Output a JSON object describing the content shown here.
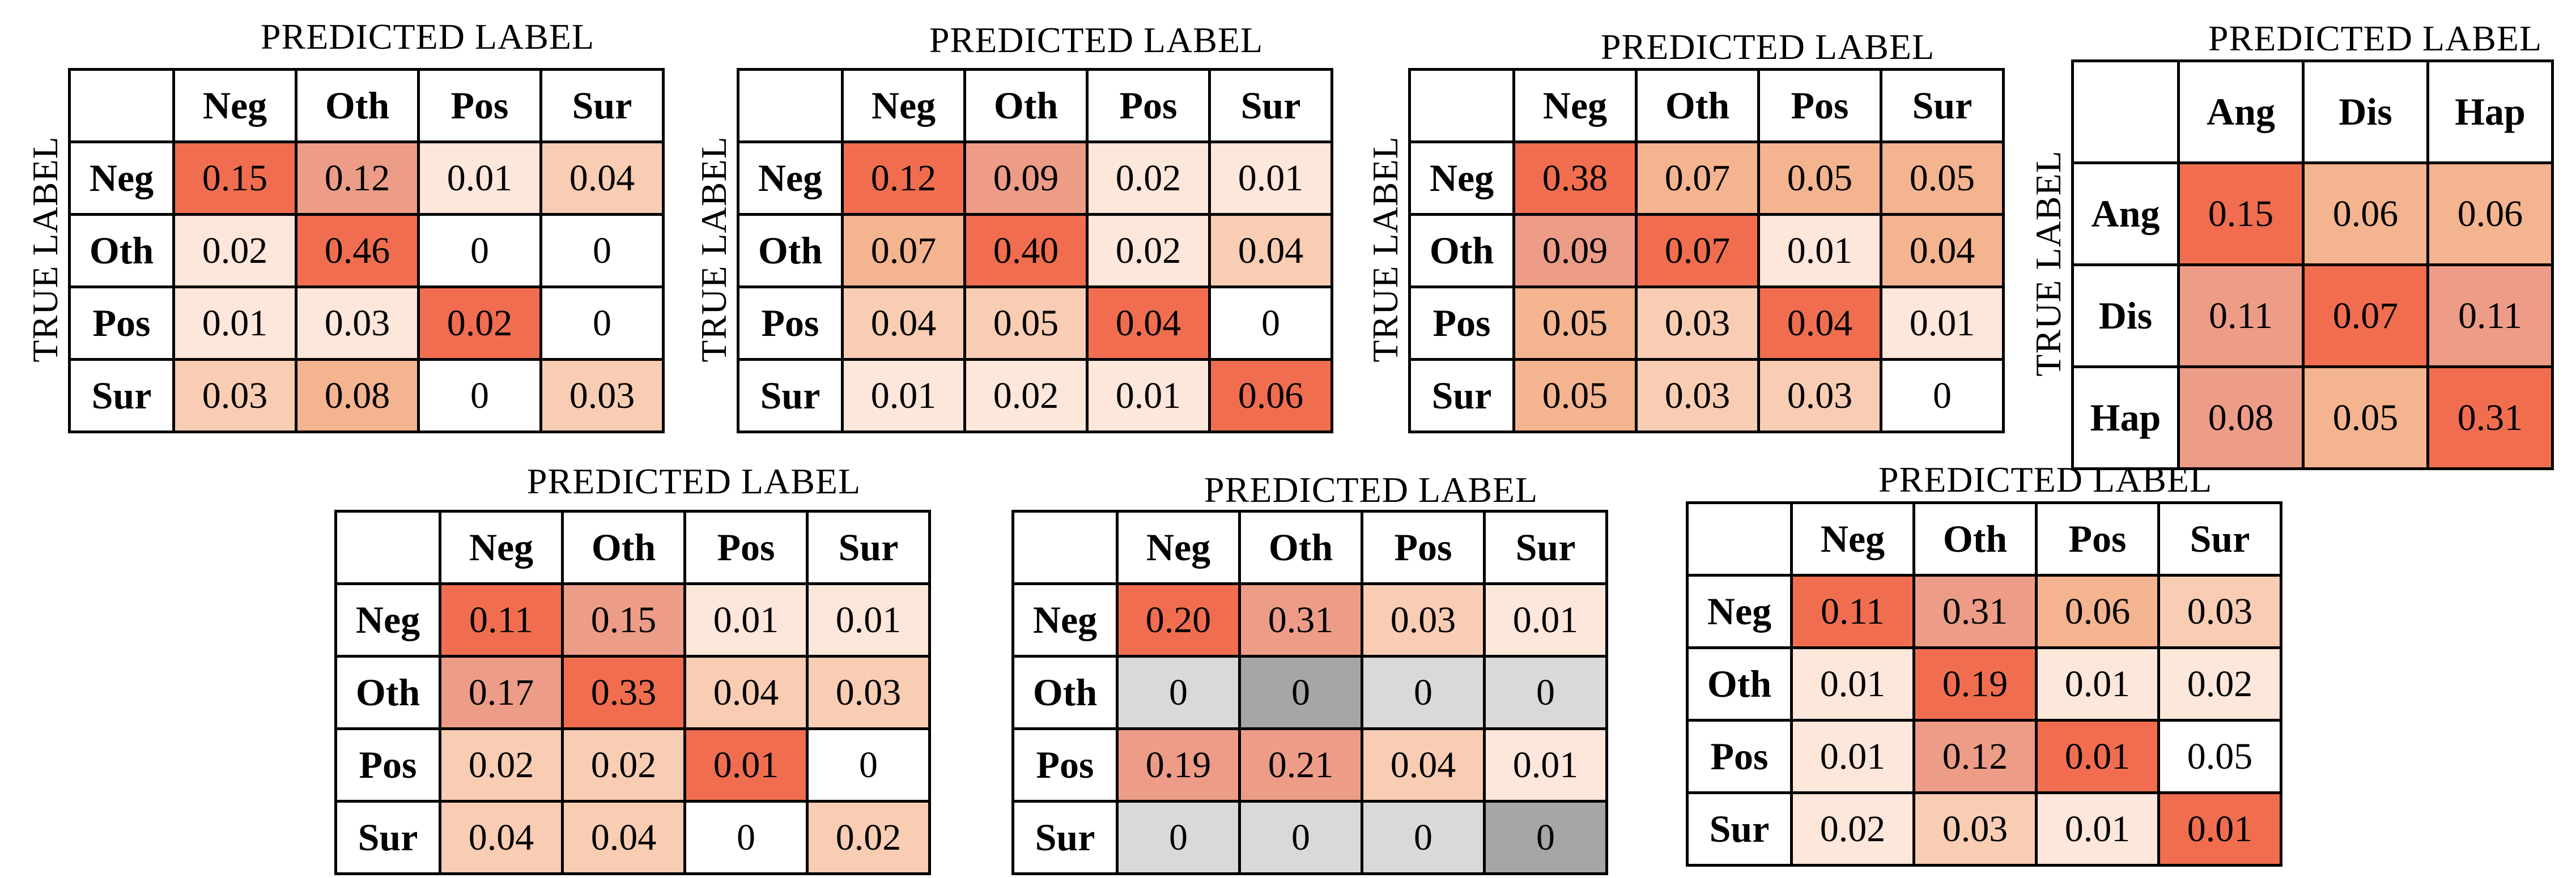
{
  "axis_labels": {
    "predicted": "PREDICTED LABEL",
    "true": "TRUE LABEL"
  },
  "colors": {
    "scale": [
      "#ffffff",
      "#fde6da",
      "#f9cdb3",
      "#f4b48f",
      "#ed9c88",
      "#f06e4f"
    ],
    "gray_light": "#d9d9d9",
    "gray_dark": "#a6a6a6"
  },
  "chart_data": [
    {
      "type": "heatmap",
      "x_label": "PREDICTED LABEL",
      "y_label": "TRUE LABEL",
      "categories": [
        "Neg",
        "Oth",
        "Pos",
        "Sur"
      ],
      "values": [
        [
          "0.15",
          "0.12",
          "0.01",
          "0.04"
        ],
        [
          "0.02",
          "0.46",
          "0",
          "0"
        ],
        [
          "0.01",
          "0.03",
          "0.02",
          "0"
        ],
        [
          "0.03",
          "0.08",
          "0",
          "0.03"
        ]
      ],
      "shades": [
        [
          5,
          4,
          1,
          2
        ],
        [
          1,
          5,
          0,
          0
        ],
        [
          1,
          1,
          5,
          0
        ],
        [
          2,
          3,
          0,
          2
        ]
      ]
    },
    {
      "type": "heatmap",
      "x_label": "PREDICTED LABEL",
      "y_label": "TRUE LABEL",
      "categories": [
        "Neg",
        "Oth",
        "Pos",
        "Sur"
      ],
      "values": [
        [
          "0.12",
          "0.09",
          "0.02",
          "0.01"
        ],
        [
          "0.07",
          "0.40",
          "0.02",
          "0.04"
        ],
        [
          "0.04",
          "0.05",
          "0.04",
          "0"
        ],
        [
          "0.01",
          "0.02",
          "0.01",
          "0.06"
        ]
      ],
      "shades": [
        [
          5,
          4,
          1,
          1
        ],
        [
          3,
          5,
          1,
          2
        ],
        [
          2,
          2,
          5,
          0
        ],
        [
          1,
          1,
          1,
          5
        ]
      ]
    },
    {
      "type": "heatmap",
      "x_label": "PREDICTED LABEL",
      "y_label": "TRUE LABEL",
      "categories": [
        "Neg",
        "Oth",
        "Pos",
        "Sur"
      ],
      "values": [
        [
          "0.38",
          "0.07",
          "0.05",
          "0.05"
        ],
        [
          "0.09",
          "0.07",
          "0.01",
          "0.04"
        ],
        [
          "0.05",
          "0.03",
          "0.04",
          "0.01"
        ],
        [
          "0.05",
          "0.03",
          "0.03",
          "0"
        ]
      ],
      "shades": [
        [
          5,
          3,
          3,
          3
        ],
        [
          4,
          5,
          1,
          3
        ],
        [
          3,
          2,
          5,
          1
        ],
        [
          3,
          2,
          2,
          0
        ]
      ]
    },
    {
      "type": "heatmap",
      "x_label": "PREDICTED LABEL",
      "y_label": "TRUE LABEL",
      "categories": [
        "Ang",
        "Dis",
        "Hap"
      ],
      "values": [
        [
          "0.15",
          "0.06",
          "0.06"
        ],
        [
          "0.11",
          "0.07",
          "0.11"
        ],
        [
          "0.08",
          "0.05",
          "0.31"
        ]
      ],
      "shades": [
        [
          5,
          3,
          3
        ],
        [
          4,
          5,
          4
        ],
        [
          4,
          3,
          5
        ]
      ]
    },
    {
      "type": "heatmap",
      "x_label": "PREDICTED LABEL",
      "categories": [
        "Neg",
        "Oth",
        "Pos",
        "Sur"
      ],
      "values": [
        [
          "0.11",
          "0.15",
          "0.01",
          "0.01"
        ],
        [
          "0.17",
          "0.33",
          "0.04",
          "0.03"
        ],
        [
          "0.02",
          "0.02",
          "0.01",
          "0"
        ],
        [
          "0.04",
          "0.04",
          "0",
          "0.02"
        ]
      ],
      "shades": [
        [
          5,
          4,
          1,
          1
        ],
        [
          4,
          5,
          2,
          2
        ],
        [
          2,
          2,
          5,
          0
        ],
        [
          2,
          2,
          0,
          2
        ]
      ]
    },
    {
      "type": "heatmap",
      "x_label": "PREDICTED LABEL",
      "categories": [
        "Neg",
        "Oth",
        "Pos",
        "Sur"
      ],
      "values": [
        [
          "0.20",
          "0.31",
          "0.03",
          "0.01"
        ],
        [
          "0",
          "0",
          "0",
          "0"
        ],
        [
          "0.19",
          "0.21",
          "0.04",
          "0.01"
        ],
        [
          "0",
          "0",
          "0",
          "0"
        ]
      ],
      "shades": [
        [
          5,
          4,
          2,
          1
        ],
        [
          "g",
          "G",
          "g",
          "g"
        ],
        [
          4,
          4,
          2,
          1
        ],
        [
          "g",
          "g",
          "g",
          "G"
        ]
      ]
    },
    {
      "type": "heatmap",
      "x_label": "PREDICTED LABEL",
      "categories": [
        "Neg",
        "Oth",
        "Pos",
        "Sur"
      ],
      "values": [
        [
          "0.11",
          "0.31",
          "0.06",
          "0.03"
        ],
        [
          "0.01",
          "0.19",
          "0.01",
          "0.02"
        ],
        [
          "0.01",
          "0.12",
          "0.01",
          "0.05"
        ],
        [
          "0.02",
          "0.03",
          "0.01",
          "0.01"
        ]
      ],
      "shades": [
        [
          5,
          4,
          3,
          2
        ],
        [
          1,
          5,
          1,
          1
        ],
        [
          1,
          4,
          5,
          0
        ],
        [
          1,
          2,
          1,
          5
        ]
      ]
    }
  ]
}
